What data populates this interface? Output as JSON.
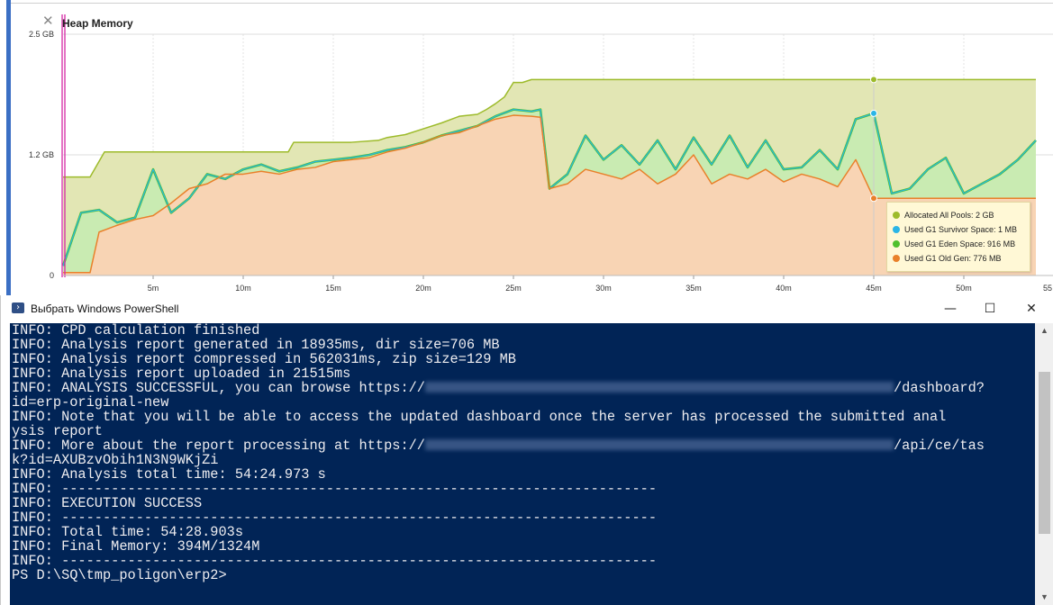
{
  "chart_panel": {
    "close_icon": "close-icon",
    "title": "Heap Memory"
  },
  "chart_data": {
    "type": "area",
    "title": "Heap Memory",
    "xlabel": "",
    "ylabel": "",
    "x_unit": "minutes",
    "y_unit": "GB",
    "ylim": [
      0,
      2.5
    ],
    "xlim": [
      0,
      55
    ],
    "y_ticks": [
      "0",
      "1.2 GB",
      "2.5 GB"
    ],
    "x_ticks": [
      "5m",
      "10m",
      "15m",
      "20m",
      "25m",
      "30m",
      "35m",
      "40m",
      "45m",
      "50m",
      "55"
    ],
    "x_tick_values": [
      5,
      10,
      15,
      20,
      25,
      30,
      35,
      40,
      45,
      50,
      55
    ],
    "grid": true,
    "legend_position": "bottom-right",
    "series": [
      {
        "name": "Allocated All Pools: 2 GB",
        "color": "#9dbb2b",
        "fill": "#e2e6b4",
        "x": [
          0,
          0.2,
          1.5,
          2.3,
          2.5,
          12.5,
          12.8,
          16,
          17.5,
          18,
          19,
          20,
          21,
          22,
          23,
          23.5,
          24,
          24.5,
          25,
          25.5,
          26,
          48,
          54
        ],
        "values": [
          1.02,
          1.02,
          1.02,
          1.28,
          1.28,
          1.28,
          1.38,
          1.38,
          1.4,
          1.43,
          1.46,
          1.52,
          1.58,
          1.65,
          1.67,
          1.72,
          1.78,
          1.85,
          2.0,
          2.0,
          2.03,
          2.03,
          2.03
        ]
      },
      {
        "name": "Used G1 Survivor Space: 1 MB",
        "color": "#2bb5e6",
        "x": [
          0,
          1,
          2,
          3,
          4,
          5,
          6,
          7,
          8,
          9,
          10,
          11,
          12,
          13,
          14,
          15,
          16,
          17,
          18,
          19,
          20,
          21,
          22,
          23,
          24,
          25,
          26,
          26.5,
          27,
          28,
          29,
          30,
          31,
          32,
          33,
          34,
          35,
          36,
          37,
          38,
          39,
          40,
          41,
          42,
          43,
          44,
          45,
          46,
          47,
          48,
          49,
          50,
          51,
          52,
          53,
          54
        ],
        "values": [
          0.1,
          0.65,
          0.68,
          0.55,
          0.6,
          1.1,
          0.65,
          0.8,
          1.05,
          1.0,
          1.1,
          1.15,
          1.08,
          1.12,
          1.18,
          1.2,
          1.22,
          1.25,
          1.3,
          1.33,
          1.38,
          1.45,
          1.5,
          1.55,
          1.65,
          1.72,
          1.7,
          1.72,
          0.9,
          1.05,
          1.45,
          1.2,
          1.35,
          1.15,
          1.4,
          1.1,
          1.43,
          1.15,
          1.45,
          1.12,
          1.4,
          1.1,
          1.12,
          1.3,
          1.1,
          1.62,
          1.68,
          0.85,
          0.9,
          1.1,
          1.22,
          0.85,
          0.95,
          1.05,
          1.2,
          1.4
        ]
      },
      {
        "name": "Used G1 Eden Space: 916 MB",
        "color": "#4fc02c",
        "fill": "#c9ebb2"
      },
      {
        "name": "Used G1 Old Gen: 776 MB",
        "color": "#e9802a",
        "fill": "#f8d4b4",
        "x": [
          0,
          1,
          1.5,
          2,
          3,
          4,
          5,
          6,
          7,
          8,
          9,
          10,
          11,
          12,
          13,
          14,
          15,
          16,
          17,
          18,
          19,
          20,
          21,
          22,
          23,
          24,
          25,
          26,
          26.5,
          27,
          28,
          29,
          30,
          31,
          32,
          33,
          34,
          35,
          36,
          37,
          38,
          39,
          40,
          41,
          42,
          43,
          44,
          45,
          54
        ],
        "values": [
          0.03,
          0.03,
          0.03,
          0.45,
          0.52,
          0.58,
          0.62,
          0.75,
          0.9,
          0.95,
          1.05,
          1.05,
          1.08,
          1.05,
          1.1,
          1.12,
          1.18,
          1.2,
          1.22,
          1.28,
          1.32,
          1.38,
          1.45,
          1.48,
          1.55,
          1.62,
          1.66,
          1.65,
          1.64,
          0.9,
          0.95,
          1.1,
          1.05,
          1.0,
          1.1,
          0.95,
          1.05,
          1.25,
          0.95,
          1.05,
          1.0,
          1.1,
          0.97,
          1.05,
          1.0,
          0.92,
          1.2,
          0.8,
          0.8
        ]
      }
    ],
    "tooltip_legend": [
      {
        "label": "Allocated All Pools: 2 GB",
        "color": "#9dbb2b"
      },
      {
        "label": "Used G1 Survivor Space: 1 MB",
        "color": "#2bb5e6"
      },
      {
        "label": "Used G1 Eden Space: 916 MB",
        "color": "#4fc02c"
      },
      {
        "label": "Used G1 Old Gen: 776 MB",
        "color": "#e9802a"
      }
    ],
    "cursor_x": 45,
    "cursor_markers": [
      {
        "series": "Allocated All Pools: 2 GB",
        "value": 2.03
      },
      {
        "series": "Used G1 Survivor Space: 1 MB",
        "value": 1.68
      },
      {
        "series": "Used G1 Old Gen: 776 MB",
        "value": 0.8
      }
    ]
  },
  "powershell": {
    "title": "Выбрать Windows PowerShell",
    "icon": "powershell-icon",
    "minimize_icon": "minimize-icon",
    "maximize_icon": "maximize-icon",
    "close_icon": "close-icon",
    "lines_before_url1": "INFO: CPD calculation finished\nINFO: Analysis report generated in 18935ms, dir size=706 MB\nINFO: Analysis report compressed in 562031ms, zip size=129 MB\nINFO: Analysis report uploaded in 21515ms\nINFO: ANALYSIS SUCCESSFUL, you can browse https://",
    "url1_suffix": "/dashboard?\nid=erp-original-new\nINFO: Note that you will be able to access the updated dashboard once the server has processed the submitted anal\nysis report\nINFO: More about the report processing at https://",
    "url2_suffix": "/api/ce/tas\nk?id=AXUBzvObih1N3N9WKjZi\nINFO: Analysis total time: 54:24.973 s\nINFO: ------------------------------------------------------------------------\nINFO: EXECUTION SUCCESS\nINFO: ------------------------------------------------------------------------\nINFO: Total time: 54:28.903s\nINFO: Final Memory: 394M/1324M\nINFO: ------------------------------------------------------------------------\nPS D:\\SQ\\tmp_poligon\\erp2>"
  }
}
